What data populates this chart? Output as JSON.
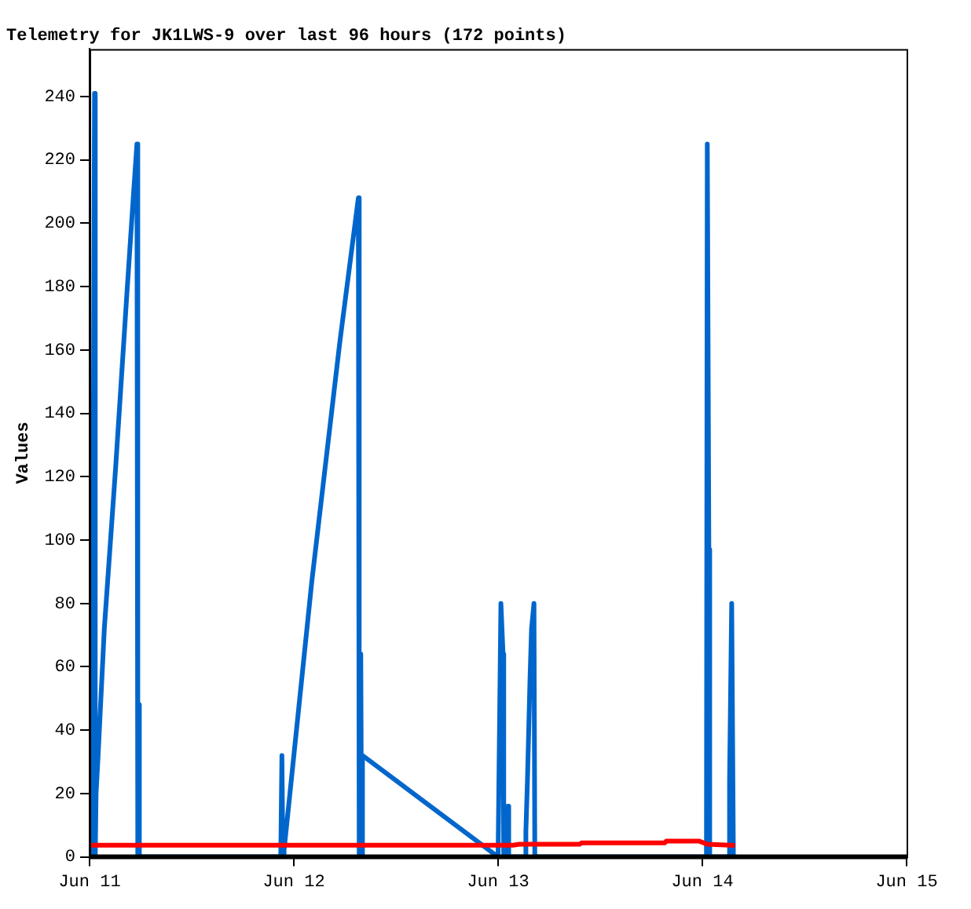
{
  "chart_data": {
    "type": "line",
    "title": "Telemetry for JK1LWS-9 over last 96 hours (172 points)",
    "ylabel": "Values",
    "xlim": [
      "--06-11",
      "--06-15"
    ],
    "xticks": [
      {
        "value": "--06-11",
        "label": "Jun 11"
      },
      {
        "value": "--06-12",
        "label": "Jun 12"
      },
      {
        "value": "--06-13",
        "label": "Jun 13"
      },
      {
        "value": "--06-14",
        "label": "Jun 14"
      },
      {
        "value": "--06-15",
        "label": "Jun 15"
      }
    ],
    "ylim": [
      0,
      255
    ],
    "yticks": [
      0,
      20,
      40,
      60,
      80,
      100,
      120,
      140,
      160,
      180,
      200,
      220,
      240
    ],
    "grid": false,
    "legend": false,
    "marker": "none",
    "line_style": "solid",
    "series": [
      {
        "color": "#0066cc",
        "x": [
          "--06-11T00:06",
          "--06-11T00:11",
          "--06-11T00:17",
          "--06-11T00:35",
          "--06-11T00:40",
          "--06-11T00:46",
          "--06-11T00:58",
          "--06-11T01:44",
          "--06-11T03:04",
          "--06-11T04:25",
          "--06-11T05:11",
          "--06-11T05:34",
          "--06-11T05:40",
          "--06-11T05:46",
          "--06-11T05:51",
          "--06-11T22:28",
          "--06-11T22:36",
          "--06-11T22:43",
          "--06-11T22:51",
          "--06-12T02:07",
          "--06-12T05:23",
          "--06-12T07:35",
          "--06-12T07:41",
          "--06-12T07:52",
          "--06-12T07:58",
          "--06-12T08:04",
          "--06-13T00:00",
          "--06-13T00:20",
          "--06-13T00:35",
          "--06-13T00:40",
          "--06-13T01:09",
          "--06-13T01:15",
          "--06-13T03:10",
          "--06-13T03:16",
          "--06-13T03:27",
          "--06-13T03:45",
          "--06-13T03:56",
          "--06-13T04:13",
          "--06-13T04:19",
          "--06-14T00:29",
          "--06-14T00:35",
          "--06-14T00:46",
          "--06-14T00:52",
          "--06-14T03:10",
          "--06-14T03:12",
          "--06-14T03:27",
          "--06-14T03:39"
        ],
        "values": [
          0,
          25,
          0,
          241,
          0,
          20,
          30,
          72,
          123,
          179,
          210,
          225,
          0,
          48,
          0,
          0,
          32,
          0,
          2,
          87,
          162,
          208,
          0,
          64,
          0,
          32,
          0,
          80,
          64,
          0,
          16,
          0,
          0,
          8,
          24,
          56,
          72,
          80,
          0,
          0,
          225,
          97,
          0,
          0,
          24,
          80,
          0
        ]
      },
      {
        "color": "#ff0000",
        "x": [
          "--06-11T00:11",
          "--06-13T01:44",
          "--06-13T02:30",
          "--06-13T09:36",
          "--06-13T09:48",
          "--06-13T19:35",
          "--06-13T19:46",
          "--06-13T23:36",
          "--06-14T00:35",
          "--06-14T03:50"
        ],
        "values": [
          3.7,
          3.7,
          4.0,
          4.0,
          4.4,
          4.4,
          5.0,
          5.0,
          4.0,
          3.6
        ]
      }
    ]
  }
}
